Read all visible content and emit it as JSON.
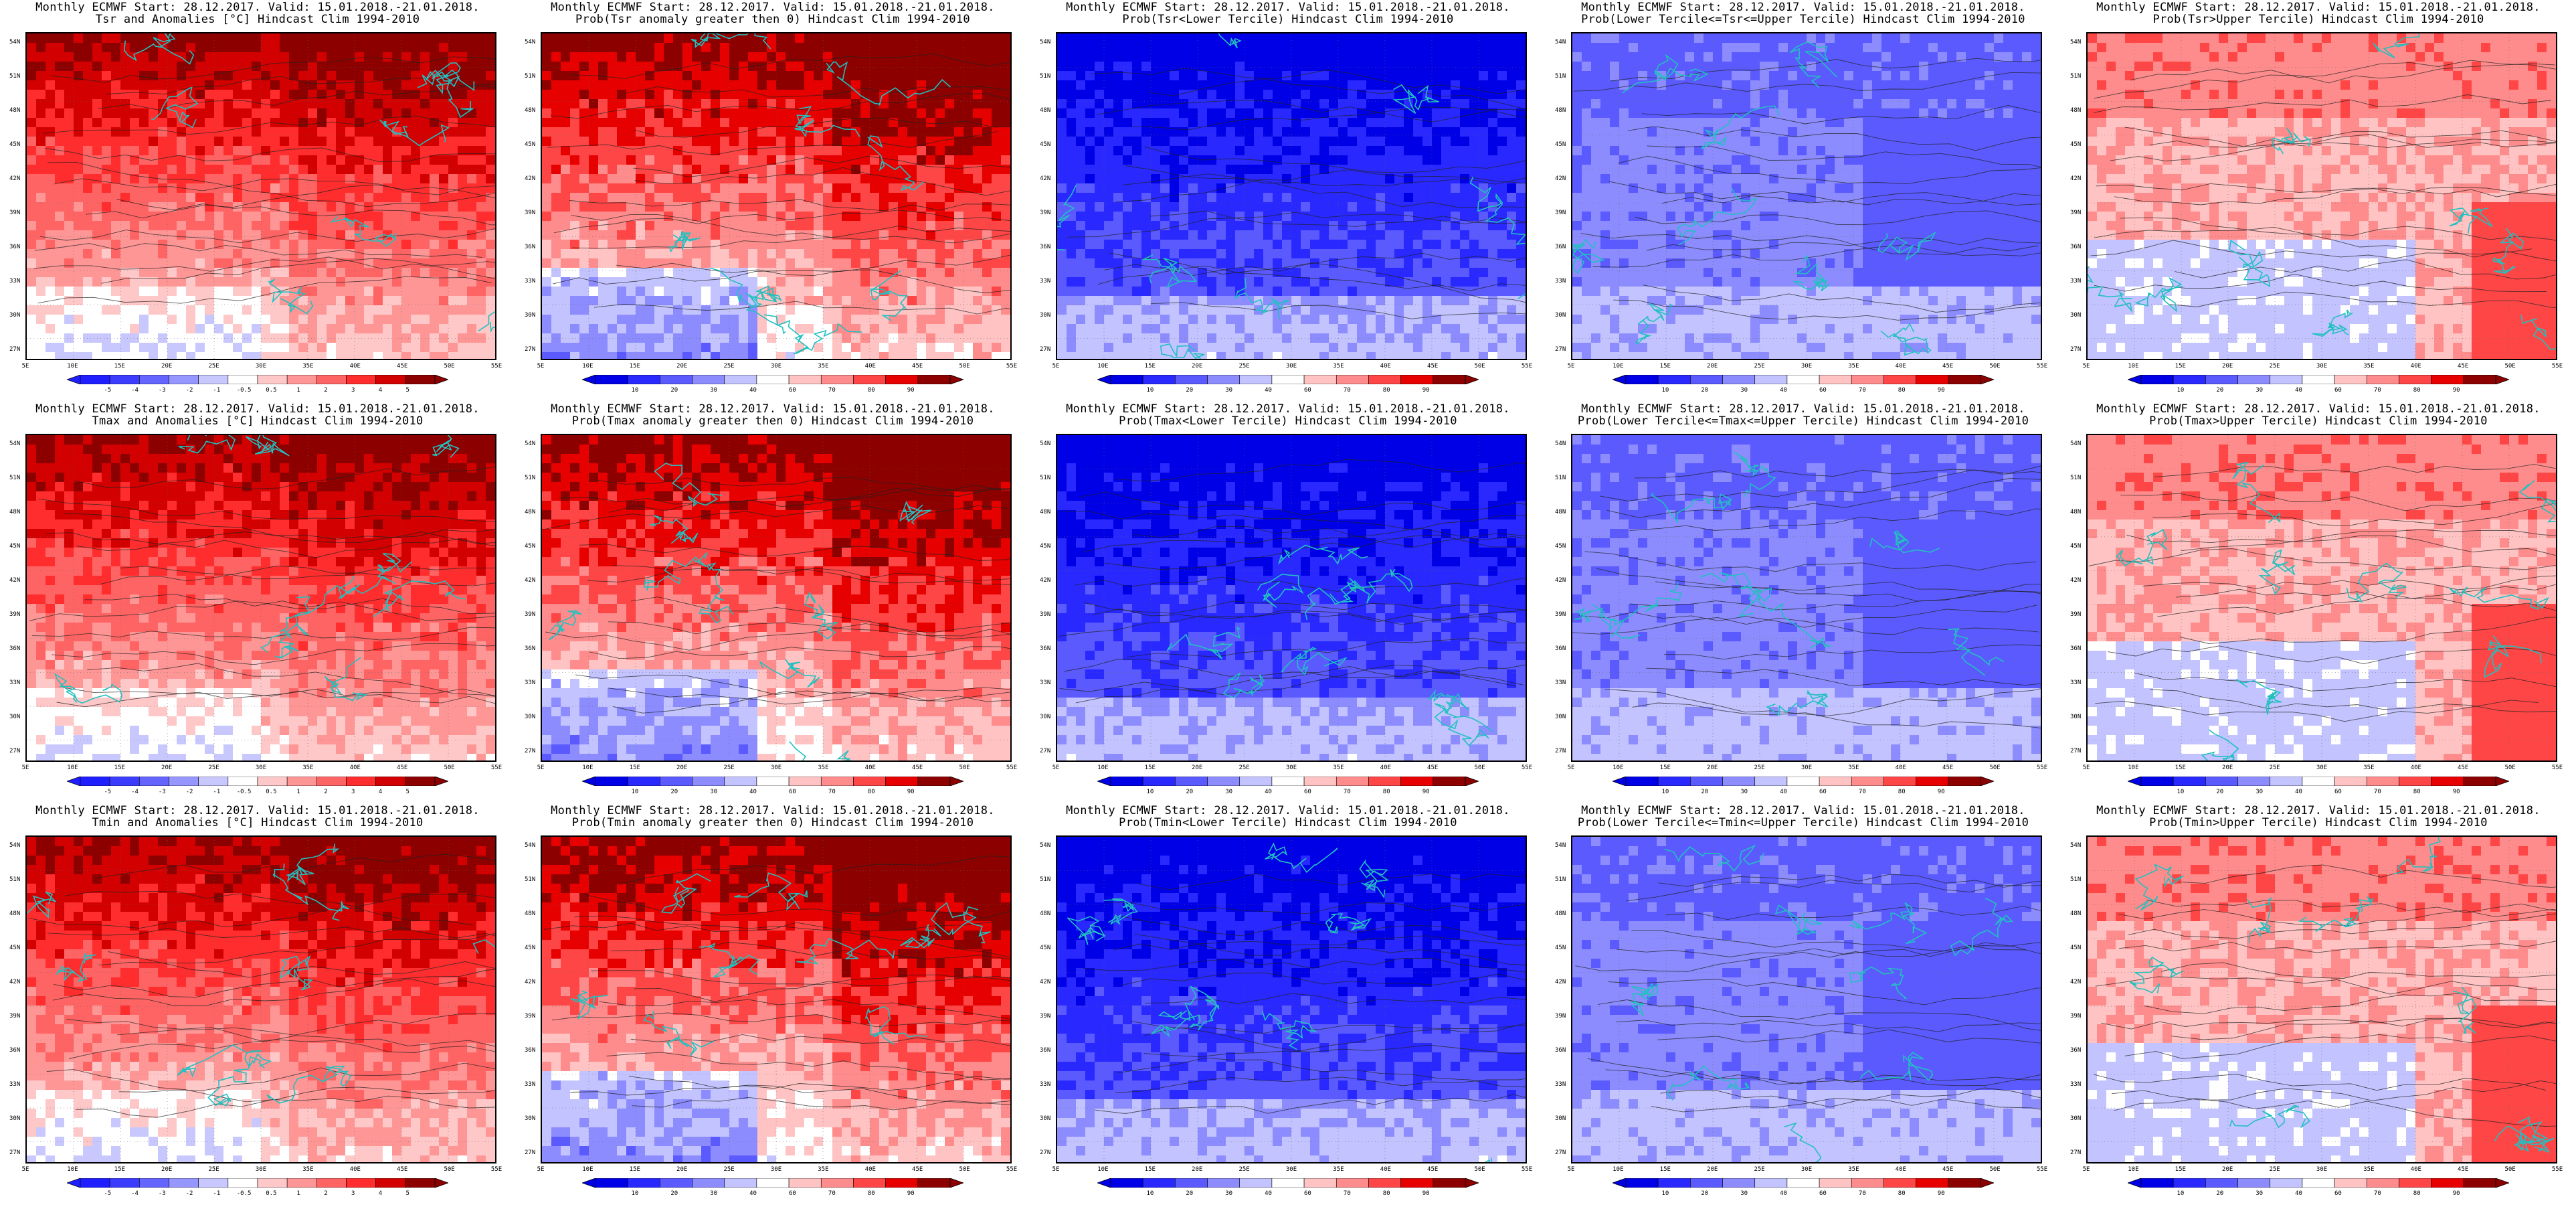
{
  "colors": {
    "anom": [
      "#1e1eff",
      "#3c3cff",
      "#6464ff",
      "#9696ff",
      "#c8c8ff",
      "#ffffff",
      "#ffc8c8",
      "#ff9696",
      "#ff6464",
      "#ff2d2d",
      "#d20000",
      "#8c0000"
    ],
    "prob": [
      "#0000e6",
      "#2828ff",
      "#5a5aff",
      "#8c8cff",
      "#c3c3ff",
      "#ffffff",
      "#ffc3c3",
      "#ff8c8c",
      "#ff4646",
      "#e60000",
      "#8c0000"
    ],
    "coast": "#22c0c0",
    "contour": "#222222"
  },
  "axes": {
    "lat": [
      "54N",
      "51N",
      "48N",
      "45N",
      "42N",
      "39N",
      "36N",
      "33N",
      "30N",
      "27N"
    ],
    "lon": [
      "5E",
      "10E",
      "15E",
      "20E",
      "25E",
      "30E",
      "35E",
      "40E",
      "45E",
      "50E",
      "55E"
    ]
  },
  "colorbars": {
    "anom": [
      "-5",
      "-4",
      "-3",
      "-2",
      "-1",
      "-0.5",
      "0.5",
      "1",
      "2",
      "3",
      "4",
      "5"
    ],
    "prob": [
      "10",
      "20",
      "30",
      "40",
      "60",
      "70",
      "80",
      "90"
    ]
  },
  "panels": [
    {
      "t1": "Monthly ECMWF Start: 28.12.2017. Valid: 15.01.2018.-21.01.2018.",
      "t2": "Tsr and Anomalies [°C] Hindcast Clim 1994-2010",
      "cb": "anom",
      "scheme": "anom_warm"
    },
    {
      "t1": "Monthly ECMWF Start: 28.12.2017. Valid: 15.01.2018.-21.01.2018.",
      "t2": "Prob(Tsr anomaly greater then 0) Hindcast Clim 1994-2010",
      "cb": "prob",
      "scheme": "prob_red"
    },
    {
      "t1": "Monthly ECMWF Start: 28.12.2017. Valid: 15.01.2018.-21.01.2018.",
      "t2": "Prob(Tsr<Lower Tercile) Hindcast Clim 1994-2010",
      "cb": "prob",
      "scheme": "prob_blue"
    },
    {
      "t1": "Monthly ECMWF Start: 28.12.2017. Valid: 15.01.2018.-21.01.2018.",
      "t2": "Prob(Lower Tercile<=Tsr<=Upper Tercile) Hindcast Clim 1994-2010",
      "cb": "prob",
      "scheme": "prob_mid"
    },
    {
      "t1": "Monthly ECMWF Start: 28.12.2017. Valid: 15.01.2018.-21.01.2018.",
      "t2": "Prob(Tsr>Upper Tercile) Hindcast Clim 1994-2010",
      "cb": "prob",
      "scheme": "prob_upper"
    },
    {
      "t1": "Monthly ECMWF Start: 28.12.2017. Valid: 15.01.2018.-21.01.2018.",
      "t2": "Tmax and Anomalies [°C] Hindcast Clim 1994-2010",
      "cb": "anom",
      "scheme": "anom_warm"
    },
    {
      "t1": "Monthly ECMWF Start: 28.12.2017. Valid: 15.01.2018.-21.01.2018.",
      "t2": "Prob(Tmax anomaly greater then 0) Hindcast Clim 1994-2010",
      "cb": "prob",
      "scheme": "prob_red"
    },
    {
      "t1": "Monthly ECMWF Start: 28.12.2017. Valid: 15.01.2018.-21.01.2018.",
      "t2": "Prob(Tmax<Lower Tercile) Hindcast Clim 1994-2010",
      "cb": "prob",
      "scheme": "prob_blue"
    },
    {
      "t1": "Monthly ECMWF Start: 28.12.2017. Valid: 15.01.2018.-21.01.2018.",
      "t2": "Prob(Lower Tercile<=Tmax<=Upper Tercile) Hindcast Clim 1994-2010",
      "cb": "prob",
      "scheme": "prob_mid"
    },
    {
      "t1": "Monthly ECMWF Start: 28.12.2017. Valid: 15.01.2018.-21.01.2018.",
      "t2": "Prob(Tmax>Upper Tercile) Hindcast Clim 1994-2010",
      "cb": "prob",
      "scheme": "prob_upper"
    },
    {
      "t1": "Monthly ECMWF Start: 28.12.2017. Valid: 15.01.2018.-21.01.2018.",
      "t2": "Tmin and Anomalies [°C] Hindcast Clim 1994-2010",
      "cb": "anom",
      "scheme": "anom_warm"
    },
    {
      "t1": "Monthly ECMWF Start: 28.12.2017. Valid: 15.01.2018.-21.01.2018.",
      "t2": "Prob(Tmin anomaly greater then 0) Hindcast Clim 1994-2010",
      "cb": "prob",
      "scheme": "prob_red"
    },
    {
      "t1": "Monthly ECMWF Start: 28.12.2017. Valid: 15.01.2018.-21.01.2018.",
      "t2": "Prob(Tmin<Lower Tercile) Hindcast Clim 1994-2010",
      "cb": "prob",
      "scheme": "prob_blue"
    },
    {
      "t1": "Monthly ECMWF Start: 28.12.2017. Valid: 15.01.2018.-21.01.2018.",
      "t2": "Prob(Lower Tercile<=Tmin<=Upper Tercile) Hindcast Clim 1994-2010",
      "cb": "prob",
      "scheme": "prob_mid"
    },
    {
      "t1": "Monthly ECMWF Start: 28.12.2017. Valid: 15.01.2018.-21.01.2018.",
      "t2": "Prob(Tmin>Upper Tercile) Hindcast Clim 1994-2010",
      "cb": "prob",
      "scheme": "prob_upper"
    }
  ]
}
